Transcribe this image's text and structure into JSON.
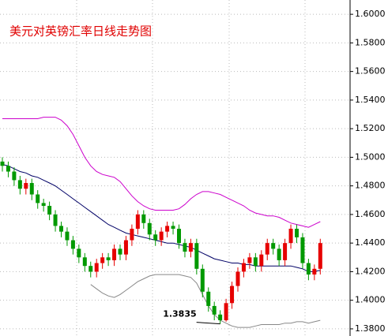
{
  "chart_data": {
    "type": "candlestick",
    "title": "美元对英镑汇率日线走势图",
    "ylim": [
      1.375,
      1.61
    ],
    "yticks": [
      {
        "value": 1.6,
        "label": "1.6000"
      },
      {
        "value": 1.58,
        "label": "1.5800"
      },
      {
        "value": 1.56,
        "label": "1.5600"
      },
      {
        "value": 1.54,
        "label": "1.5400"
      },
      {
        "value": 1.52,
        "label": "1.5200"
      },
      {
        "value": 1.5,
        "label": "1.5000"
      },
      {
        "value": 1.48,
        "label": "1.4800"
      },
      {
        "value": 1.46,
        "label": "1.4600"
      },
      {
        "value": 1.44,
        "label": "1.4400"
      },
      {
        "value": 1.42,
        "label": "1.4200"
      },
      {
        "value": 1.4,
        "label": "1.4000"
      },
      {
        "value": 1.38,
        "label": "1.3800"
      }
    ],
    "grid": true,
    "up_color": "#e60000",
    "down_color": "#009900",
    "opens": [
      1.497,
      1.494,
      1.49,
      1.484,
      1.478,
      1.482,
      1.474,
      1.468,
      1.466,
      1.46,
      1.452,
      1.448,
      1.442,
      1.436,
      1.43,
      1.424,
      1.42,
      1.426,
      1.43,
      1.428,
      1.436,
      1.432,
      1.442,
      1.45,
      1.46,
      1.454,
      1.446,
      1.442,
      1.448,
      1.452,
      1.45,
      1.44,
      1.434,
      1.44,
      1.422,
      1.406,
      1.396,
      1.39,
      1.386,
      1.398,
      1.41,
      1.42,
      1.426,
      1.43,
      1.424,
      1.432,
      1.44,
      1.436,
      1.428,
      1.44,
      1.45,
      1.444,
      1.426,
      1.418,
      1.422
    ],
    "highs": [
      1.5,
      1.497,
      1.493,
      1.487,
      1.485,
      1.485,
      1.477,
      1.471,
      1.469,
      1.463,
      1.455,
      1.451,
      1.445,
      1.439,
      1.433,
      1.427,
      1.429,
      1.433,
      1.433,
      1.439,
      1.439,
      1.445,
      1.453,
      1.463,
      1.463,
      1.457,
      1.449,
      1.451,
      1.455,
      1.455,
      1.453,
      1.443,
      1.443,
      1.443,
      1.425,
      1.409,
      1.399,
      1.393,
      1.401,
      1.413,
      1.423,
      1.429,
      1.433,
      1.433,
      1.435,
      1.443,
      1.443,
      1.439,
      1.443,
      1.453,
      1.453,
      1.447,
      1.429,
      1.425,
      1.443
    ],
    "lows": [
      1.49,
      1.486,
      1.48,
      1.474,
      1.474,
      1.47,
      1.464,
      1.462,
      1.456,
      1.448,
      1.444,
      1.438,
      1.432,
      1.426,
      1.42,
      1.416,
      1.416,
      1.422,
      1.424,
      1.424,
      1.428,
      1.428,
      1.438,
      1.446,
      1.45,
      1.442,
      1.438,
      1.438,
      1.444,
      1.446,
      1.436,
      1.43,
      1.43,
      1.418,
      1.402,
      1.392,
      1.386,
      1.3835,
      1.385,
      1.394,
      1.406,
      1.416,
      1.422,
      1.42,
      1.42,
      1.428,
      1.432,
      1.424,
      1.424,
      1.436,
      1.44,
      1.422,
      1.414,
      1.414,
      1.418
    ],
    "closes": [
      1.494,
      1.49,
      1.484,
      1.478,
      1.482,
      1.474,
      1.468,
      1.466,
      1.46,
      1.452,
      1.448,
      1.442,
      1.436,
      1.43,
      1.424,
      1.42,
      1.426,
      1.43,
      1.428,
      1.436,
      1.432,
      1.442,
      1.45,
      1.46,
      1.454,
      1.446,
      1.442,
      1.448,
      1.452,
      1.45,
      1.44,
      1.434,
      1.44,
      1.422,
      1.406,
      1.396,
      1.39,
      1.386,
      1.398,
      1.41,
      1.42,
      1.426,
      1.43,
      1.424,
      1.432,
      1.44,
      1.436,
      1.428,
      1.44,
      1.45,
      1.444,
      1.426,
      1.418,
      1.422,
      1.44
    ],
    "lines": [
      {
        "color": "#cc00cc",
        "values": [
          1.527,
          1.527,
          1.527,
          1.527,
          1.527,
          1.527,
          1.527,
          1.528,
          1.528,
          1.528,
          1.526,
          1.522,
          1.516,
          1.508,
          1.5,
          1.494,
          1.49,
          1.488,
          1.487,
          1.486,
          1.483,
          1.478,
          1.473,
          1.469,
          1.466,
          1.464,
          1.463,
          1.463,
          1.463,
          1.463,
          1.464,
          1.467,
          1.471,
          1.474,
          1.476,
          1.476,
          1.475,
          1.474,
          1.472,
          1.47,
          1.468,
          1.466,
          1.463,
          1.461,
          1.46,
          1.459,
          1.459,
          1.458,
          1.456,
          1.454,
          1.453,
          1.452,
          1.451,
          1.453,
          1.455
        ]
      },
      {
        "color": "#000066",
        "values": [
          1.495,
          1.494,
          1.492,
          1.49,
          1.489,
          1.487,
          1.486,
          1.484,
          1.482,
          1.48,
          1.477,
          1.474,
          1.471,
          1.468,
          1.465,
          1.462,
          1.459,
          1.456,
          1.453,
          1.451,
          1.449,
          1.447,
          1.446,
          1.445,
          1.444,
          1.443,
          1.442,
          1.441,
          1.44,
          1.44,
          1.439,
          1.438,
          1.437,
          1.435,
          1.433,
          1.431,
          1.429,
          1.428,
          1.427,
          1.426,
          1.426,
          1.425,
          1.425,
          1.424,
          1.424,
          1.424,
          1.424,
          1.424,
          1.424,
          1.424,
          1.423,
          1.422,
          1.42,
          1.42,
          1.421
        ]
      },
      {
        "color": "#888888",
        "values": [
          null,
          null,
          null,
          null,
          null,
          null,
          null,
          null,
          null,
          null,
          null,
          null,
          null,
          null,
          null,
          1.411,
          1.408,
          1.405,
          1.403,
          1.402,
          1.404,
          1.407,
          1.41,
          1.413,
          1.415,
          1.417,
          1.418,
          1.418,
          1.418,
          1.418,
          1.418,
          1.417,
          1.416,
          1.412,
          1.404,
          1.396,
          1.39,
          1.386,
          1.384,
          1.382,
          1.381,
          1.381,
          1.381,
          1.382,
          1.383,
          1.383,
          1.383,
          1.383,
          1.384,
          1.384,
          1.385,
          1.385,
          1.384,
          1.385,
          1.386
        ]
      }
    ],
    "annotation": {
      "text": "1.3835",
      "index": 37
    }
  }
}
